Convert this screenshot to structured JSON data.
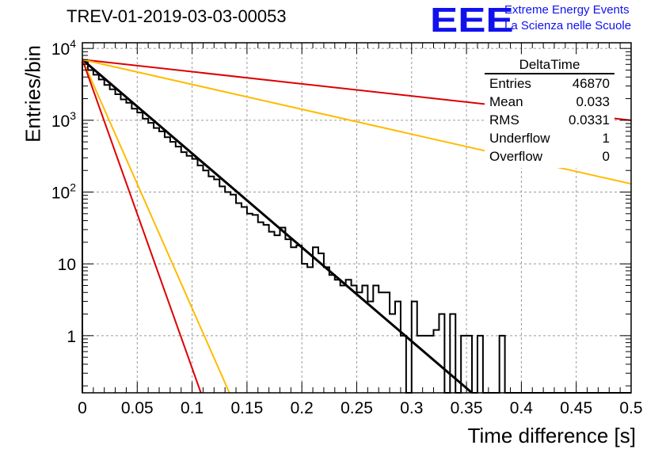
{
  "header": {
    "title": "TREV-01-2019-03-03-00053"
  },
  "logo": {
    "mark": "EEE",
    "line1": "Extreme Energy Events",
    "line2": "La Scienza nelle Scuole"
  },
  "stats_box": {
    "name": "DeltaTime",
    "rows": [
      {
        "label": "Entries",
        "value": "46870"
      },
      {
        "label": "Mean",
        "value": "0.033"
      },
      {
        "label": "RMS",
        "value": "0.0331"
      },
      {
        "label": "Underflow",
        "value": "1"
      },
      {
        "label": "Overflow",
        "value": "0"
      }
    ]
  },
  "chart_data": {
    "type": "line",
    "xlabel": "Time difference [s]",
    "ylabel": "Entries/bin",
    "xlim": [
      0,
      0.5
    ],
    "ylim": [
      0.16,
      12000
    ],
    "yscale": "log",
    "grid": true,
    "x_ticks": [
      "0",
      "0.05",
      "0.1",
      "0.15",
      "0.2",
      "0.25",
      "0.3",
      "0.35",
      "0.4",
      "0.45",
      "0.5"
    ],
    "y_ticks": [
      {
        "value": 1,
        "label": "1"
      },
      {
        "value": 10,
        "label": "10"
      },
      {
        "value": 100,
        "label": "10^2"
      },
      {
        "value": 1000,
        "label": "10^3"
      },
      {
        "value": 10000,
        "label": "10^4"
      }
    ],
    "histogram": {
      "bin_width": 0.005,
      "counts": [
        6500,
        5000,
        4300,
        3700,
        3100,
        2700,
        2300,
        1950,
        1750,
        1450,
        1280,
        1050,
        920,
        780,
        700,
        580,
        500,
        430,
        360,
        320,
        290,
        235,
        200,
        165,
        150,
        120,
        100,
        92,
        70,
        62,
        50,
        48,
        38,
        35,
        28,
        25,
        32,
        22,
        17,
        18,
        10,
        9,
        17,
        14,
        9,
        7,
        6,
        5,
        6,
        5,
        4,
        5,
        3,
        5,
        4,
        4,
        2,
        3,
        1,
        0,
        3,
        1,
        1,
        1,
        1.2,
        2,
        0,
        2,
        0,
        1,
        1,
        0,
        1,
        0,
        0,
        0,
        1,
        0,
        0,
        0,
        0,
        0,
        0,
        0,
        0,
        0,
        0,
        0,
        0,
        0,
        0,
        0,
        0,
        0,
        0,
        0,
        0,
        0,
        0,
        0
      ]
    },
    "series": [
      {
        "color": "#000000",
        "x": [
          0,
          0.355
        ],
        "y": [
          7000,
          0.16
        ]
      },
      {
        "color": "#dd0000",
        "x": [
          0,
          0.5
        ],
        "y": [
          7000,
          1000
        ]
      },
      {
        "color": "#ffbb00",
        "x": [
          0,
          0.5
        ],
        "y": [
          7000,
          130
        ]
      },
      {
        "color": "#ffbb00",
        "x": [
          0,
          0.134
        ],
        "y": [
          7000,
          0.16
        ]
      },
      {
        "color": "#dd0000",
        "x": [
          0,
          0.108
        ],
        "y": [
          7000,
          0.16
        ]
      }
    ]
  }
}
